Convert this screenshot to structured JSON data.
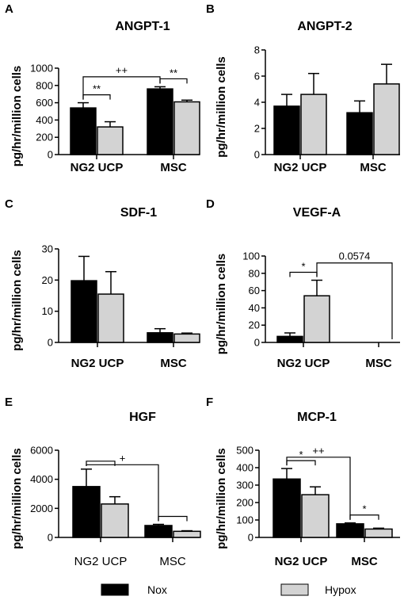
{
  "legend": {
    "entries": [
      {
        "name": "Nox",
        "color": "#000000"
      },
      {
        "name": "Hypox",
        "color": "#d3d3d3"
      }
    ]
  },
  "chart_data": [
    {
      "panel": "A",
      "type": "bar",
      "title": "ANGPT-1",
      "ylabel": "pg/hr/million cells",
      "ylim": [
        0,
        1000
      ],
      "yticks": [
        0,
        200,
        400,
        600,
        800,
        1000
      ],
      "categories": [
        "NG2 UCP",
        "MSC"
      ],
      "series": [
        {
          "name": "Nox",
          "values": [
            540,
            760
          ],
          "errors": [
            60,
            25
          ]
        },
        {
          "name": "Hypox",
          "values": [
            320,
            610
          ],
          "errors": [
            60,
            20
          ]
        }
      ],
      "annotations": [
        {
          "text": "**",
          "kind": "within",
          "category": 0
        },
        {
          "text": "**",
          "kind": "within",
          "category": 1
        },
        {
          "text": "++",
          "kind": "between",
          "series": 0,
          "level": 900
        }
      ]
    },
    {
      "panel": "B",
      "type": "bar",
      "title": "ANGPT-2",
      "ylabel": "pg/hr/million cells",
      "ylim": [
        0,
        8
      ],
      "yticks": [
        0,
        2,
        4,
        6,
        8
      ],
      "categories": [
        "NG2 UCP",
        "MSC"
      ],
      "series": [
        {
          "name": "Nox",
          "values": [
            3.7,
            3.2
          ],
          "errors": [
            0.9,
            0.9
          ]
        },
        {
          "name": "Hypox",
          "values": [
            4.6,
            5.4
          ],
          "errors": [
            1.6,
            1.5
          ]
        }
      ],
      "annotations": []
    },
    {
      "panel": "C",
      "type": "bar",
      "title": "SDF-1",
      "ylabel": "pg/hr/million cells",
      "ylim": [
        0,
        30
      ],
      "yticks": [
        0,
        10,
        20,
        30
      ],
      "categories": [
        "NG2 UCP",
        "MSC"
      ],
      "series": [
        {
          "name": "Nox",
          "values": [
            19.8,
            3.1
          ],
          "errors": [
            7.8,
            1.3
          ]
        },
        {
          "name": "Hypox",
          "values": [
            15.5,
            2.7
          ],
          "errors": [
            7.2,
            0.3
          ]
        }
      ],
      "annotations": []
    },
    {
      "panel": "D",
      "type": "bar",
      "title": "VEGF-A",
      "ylabel": "pg/hr/million cells",
      "ylim": [
        0,
        100
      ],
      "yticks": [
        0,
        20,
        40,
        60,
        80,
        100
      ],
      "categories": [
        "NG2 UCP",
        "MSC"
      ],
      "series": [
        {
          "name": "Nox",
          "values": [
            7,
            0
          ],
          "errors": [
            4,
            0
          ]
        },
        {
          "name": "Hypox",
          "values": [
            54,
            0
          ],
          "errors": [
            18,
            0
          ]
        }
      ],
      "annotations": [
        {
          "text": "*",
          "kind": "within",
          "category": 0
        },
        {
          "text": "0.0574",
          "kind": "between",
          "series": 1,
          "level": 92
        }
      ]
    },
    {
      "panel": "E",
      "type": "bar",
      "title": "HGF",
      "ylabel": "pg/hr/million cells",
      "ylim": [
        0,
        6000
      ],
      "yticks": [
        0,
        2000,
        4000,
        6000
      ],
      "categories": [
        "NG2 UCP",
        "MSC"
      ],
      "series": [
        {
          "name": "Nox",
          "values": [
            3500,
            820
          ],
          "errors": [
            1200,
            80
          ]
        },
        {
          "name": "Hypox",
          "values": [
            2300,
            420
          ],
          "errors": [
            500,
            40
          ]
        }
      ],
      "annotations": [
        {
          "text": "",
          "kind": "within",
          "category": 0
        },
        {
          "text": "",
          "kind": "within",
          "category": 1
        },
        {
          "text": "+",
          "kind": "between",
          "series": 0,
          "level": 5000
        }
      ]
    },
    {
      "panel": "F",
      "type": "bar",
      "title": "MCP-1",
      "ylabel": "pg/hr/million cells",
      "ylim": [
        0,
        500
      ],
      "yticks": [
        0,
        100,
        200,
        300,
        400,
        500
      ],
      "categories": [
        "NG2 UCP",
        "MSC"
      ],
      "series": [
        {
          "name": "Nox",
          "values": [
            335,
            78
          ],
          "errors": [
            60,
            5
          ]
        },
        {
          "name": "Hypox",
          "values": [
            245,
            48
          ],
          "errors": [
            45,
            5
          ]
        }
      ],
      "annotations": [
        {
          "text": "*",
          "kind": "within",
          "category": 0
        },
        {
          "text": "*",
          "kind": "within",
          "category": 1
        },
        {
          "text": "++",
          "kind": "between",
          "series": 0,
          "level": 460
        }
      ]
    }
  ]
}
